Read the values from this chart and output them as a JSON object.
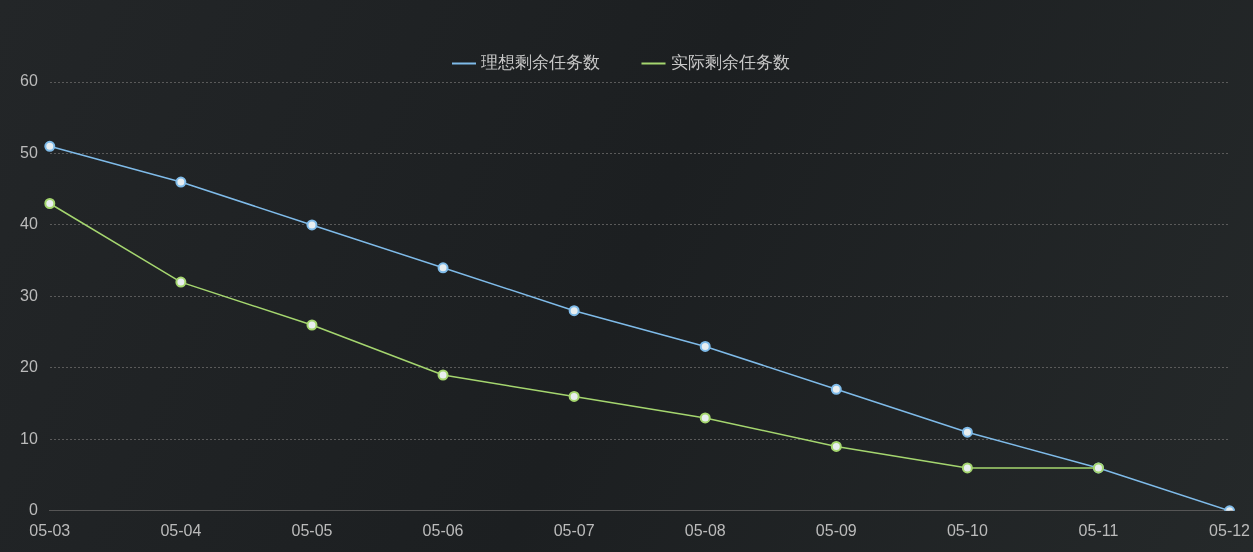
{
  "chart_data": {
    "type": "line",
    "categories": [
      "05-03",
      "05-04",
      "05-05",
      "05-06",
      "05-07",
      "05-08",
      "05-09",
      "05-10",
      "05-11",
      "05-12"
    ],
    "series": [
      {
        "name": "理想剩余任务数",
        "color": "#7fbbe9",
        "values": [
          51,
          46,
          40,
          34,
          28,
          23,
          17,
          11,
          6,
          0
        ]
      },
      {
        "name": "实际剩余任务数",
        "color": "#a5d66f",
        "values": [
          43,
          32,
          26,
          19,
          16,
          13,
          9,
          6,
          6,
          null
        ]
      }
    ],
    "ylim": [
      0,
      60
    ],
    "yticks": [
      0,
      10,
      20,
      30,
      40,
      50,
      60
    ],
    "grid": "y",
    "legend": "top",
    "marker": "circle",
    "line_style": "solid"
  }
}
